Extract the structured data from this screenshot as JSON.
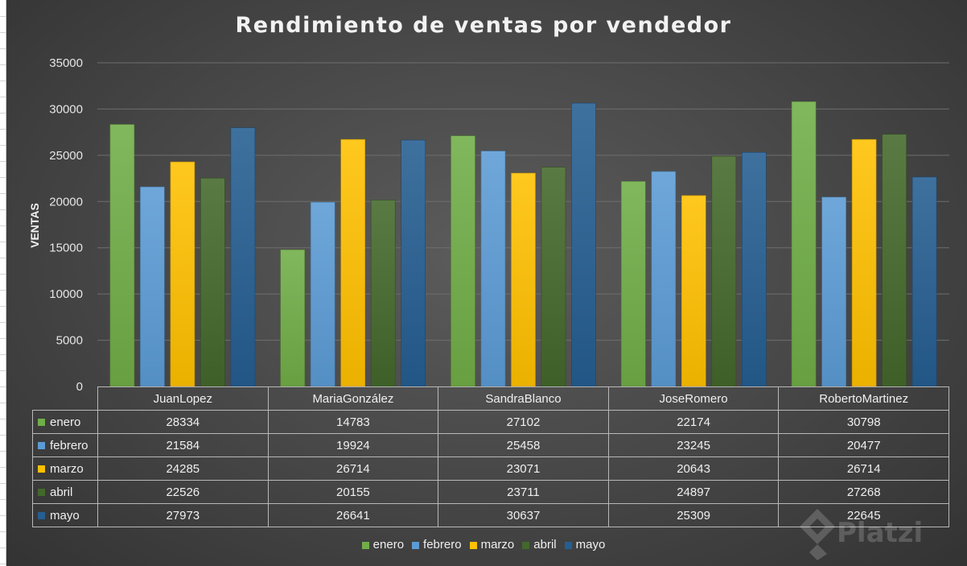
{
  "chart_data": {
    "type": "bar",
    "title": "Rendimiento de ventas por vendedor",
    "ylabel": "VENTAS",
    "xlabel": "",
    "ylim": [
      0,
      35000
    ],
    "yticks": [
      0,
      5000,
      10000,
      15000,
      20000,
      25000,
      30000,
      35000
    ],
    "grid": true,
    "legend_position": "bottom",
    "categories": [
      "JuanLopez",
      "MariaGonzález",
      "SandraBlanco",
      "JoseRomero",
      "RobertoMartinez"
    ],
    "series": [
      {
        "name": "enero",
        "color": "#70ad47",
        "values": [
          28334,
          14783,
          27102,
          22174,
          30798
        ]
      },
      {
        "name": "febrero",
        "color": "#5b9bd5",
        "values": [
          21584,
          19924,
          25458,
          23245,
          20477
        ]
      },
      {
        "name": "marzo",
        "color": "#ffc000",
        "values": [
          24285,
          26714,
          23071,
          20643,
          26714
        ]
      },
      {
        "name": "abril",
        "color": "#43682b",
        "values": [
          22526,
          20155,
          23711,
          24897,
          27268
        ]
      },
      {
        "name": "mayo",
        "color": "#255e91",
        "values": [
          27973,
          26641,
          30637,
          25309,
          22645
        ]
      }
    ]
  },
  "watermark": {
    "text": "Platzi",
    "icon": "platzi-logo-icon"
  }
}
